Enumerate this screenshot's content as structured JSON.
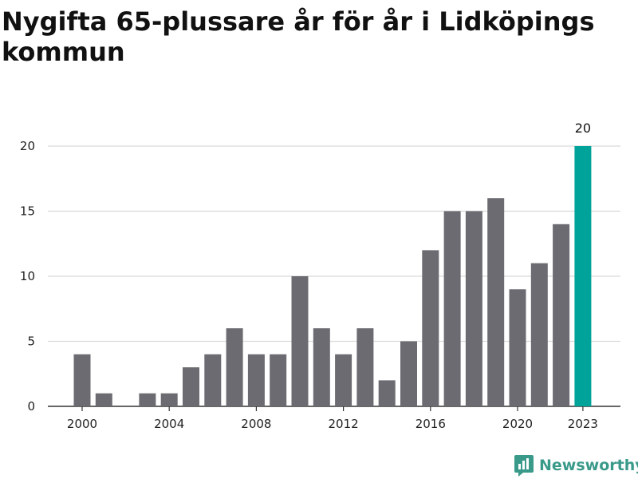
{
  "title": "Nygifta 65-plussare år för år i Lidköpings kommun",
  "brand": {
    "name": "Newsworthy",
    "color": "#3a9a8a",
    "icon": "bar-chart-logo-icon"
  },
  "colors": {
    "bar": "#6c6b71",
    "highlight": "#00a39a",
    "grid": "#d9d9d9",
    "axis": "#333333"
  },
  "chart_data": {
    "type": "bar",
    "x": [
      2000,
      2001,
      2002,
      2003,
      2004,
      2005,
      2006,
      2007,
      2008,
      2009,
      2010,
      2011,
      2012,
      2013,
      2014,
      2015,
      2016,
      2017,
      2018,
      2019,
      2020,
      2021,
      2022,
      2023
    ],
    "values": [
      4,
      1,
      0,
      1,
      1,
      3,
      4,
      6,
      4,
      4,
      10,
      6,
      4,
      6,
      2,
      5,
      12,
      15,
      15,
      16,
      9,
      11,
      14,
      20
    ],
    "highlight": 2023,
    "highlight_label": "20",
    "xticks": [
      2000,
      2004,
      2008,
      2012,
      2016,
      2020,
      2023
    ],
    "yticks": [
      0,
      5,
      10,
      15,
      20
    ],
    "ylim": [
      0,
      20
    ],
    "grid": true,
    "xlabel": "",
    "ylabel": ""
  }
}
